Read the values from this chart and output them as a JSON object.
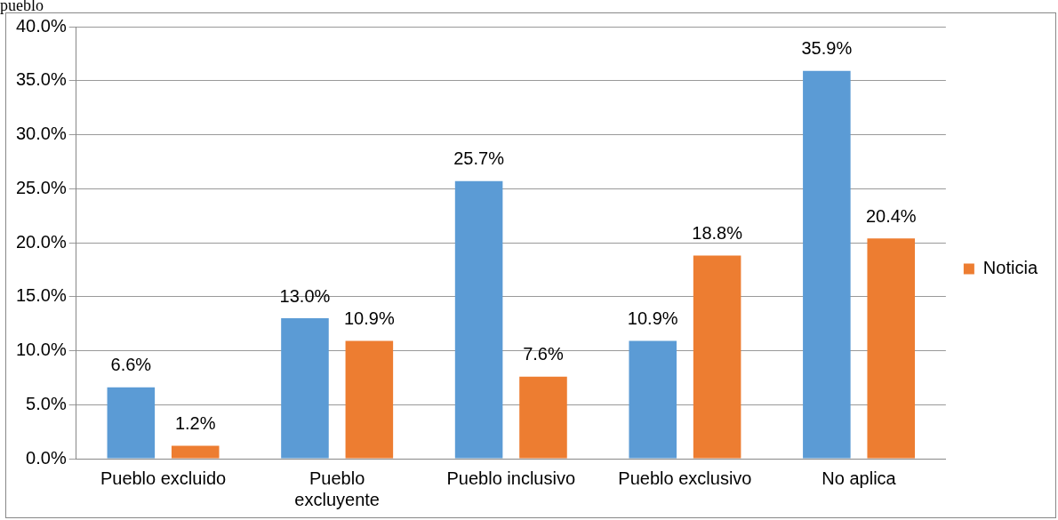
{
  "chart_data": {
    "type": "bar",
    "annotations": [
      "pueblo"
    ],
    "categories": [
      "Pueblo excluido",
      "Pueblo excluyente",
      "Pueblo inclusivo",
      "Pueblo exclusivo",
      "No aplica"
    ],
    "series": [
      {
        "color": "#5b9bd5",
        "values": [
          6.6,
          13.0,
          25.7,
          10.9,
          35.9
        ],
        "value_labels": [
          "6.6%",
          "13.0%",
          "25.7%",
          "10.9%",
          "35.9%"
        ]
      },
      {
        "name": "Noticia",
        "color": "#ed7d31",
        "values": [
          1.2,
          10.9,
          7.6,
          18.8,
          20.4
        ],
        "value_labels": [
          "1.2%",
          "10.9%",
          "7.6%",
          "18.8%",
          "20.4%"
        ]
      }
    ],
    "ylim": [
      0,
      40
    ],
    "yticks": [
      {
        "value": 0,
        "label": "0.0%"
      },
      {
        "value": 5,
        "label": "5.0%"
      },
      {
        "value": 10,
        "label": "10.0%"
      },
      {
        "value": 15,
        "label": "15.0%"
      },
      {
        "value": 20,
        "label": "20.0%"
      },
      {
        "value": 25,
        "label": "25.0%"
      },
      {
        "value": 30,
        "label": "30.0%"
      },
      {
        "value": 35,
        "label": "35.0%"
      },
      {
        "value": 40,
        "label": "40.0%"
      }
    ],
    "grid": "y",
    "legend": "right"
  }
}
